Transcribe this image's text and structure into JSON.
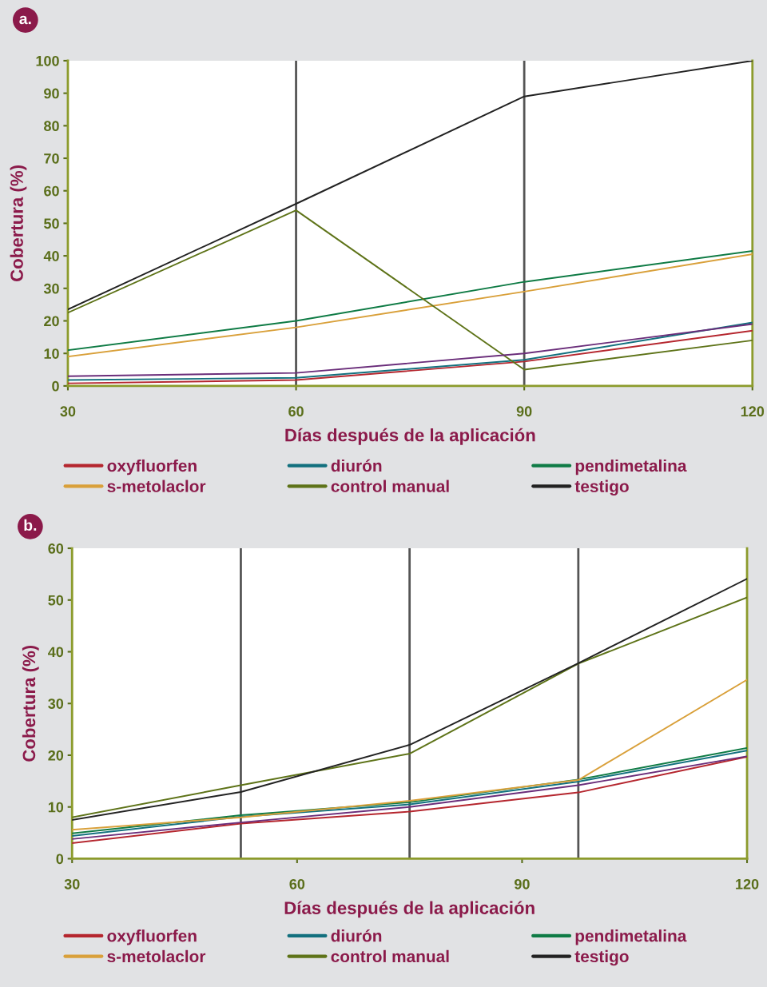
{
  "chart_data": [
    {
      "type": "line",
      "annotations": [
        "a."
      ],
      "xlabel": "Días después de la aplicación",
      "ylabel": "Cobertura (%)",
      "x": [
        30,
        60,
        90,
        120
      ],
      "xlim": [
        30,
        120
      ],
      "xticks": [
        30,
        60,
        90,
        120
      ],
      "ylim": [
        0,
        100
      ],
      "yticks": [
        0,
        10,
        20,
        30,
        40,
        50,
        60,
        70,
        80,
        90,
        100
      ],
      "grid": false,
      "legend": "bottom",
      "marker": "none",
      "line_style": "solid",
      "ref_lines": [
        {
          "axis": "x",
          "value": 60,
          "color": "#555555"
        },
        {
          "axis": "x",
          "value": 90,
          "color": "#555555"
        }
      ],
      "series": [
        {
          "name": "oxyfluorfen",
          "color": "#b5262e",
          "values": [
            0.8,
            1.8,
            7.5,
            17
          ]
        },
        {
          "name": "diurón",
          "color": "#12707e",
          "values": [
            1.8,
            2.5,
            8,
            19.5
          ]
        },
        {
          "name": "pendimetalina",
          "color": "#0f7b45",
          "values": [
            11,
            20,
            32,
            41.5
          ]
        },
        {
          "name": "s-metolaclor",
          "color": "#d9a03a",
          "values": [
            9,
            18,
            29,
            40.5
          ]
        },
        {
          "name": "control manual",
          "color": "#5e7318",
          "values": [
            22.5,
            54,
            5,
            14
          ]
        },
        {
          "name": "testigo",
          "color": "#222222",
          "values": [
            23.5,
            56,
            89,
            100
          ]
        },
        {
          "color": "#6a2d7a",
          "values": [
            3,
            4,
            10,
            19
          ]
        }
      ]
    },
    {
      "type": "line",
      "annotations": [
        "b."
      ],
      "xlabel": "Días después de la aplicación",
      "ylabel": "Cobertura (%)",
      "x": [
        30,
        52.5,
        75,
        97.5,
        120
      ],
      "xlim": [
        30,
        120
      ],
      "xticks": [
        30,
        60,
        90,
        120
      ],
      "ylim": [
        0,
        60
      ],
      "yticks": [
        0,
        10,
        20,
        30,
        40,
        50,
        60
      ],
      "grid": false,
      "legend": "bottom",
      "marker": "none",
      "line_style": "solid",
      "ref_lines": [
        {
          "axis": "x",
          "value": 52.5,
          "color": "#555555"
        },
        {
          "axis": "x",
          "value": 75,
          "color": "#555555"
        },
        {
          "axis": "x",
          "value": 97.5,
          "color": "#555555"
        }
      ],
      "series": [
        {
          "name": "oxyfluorfen",
          "color": "#b5262e",
          "values": [
            3,
            6.8,
            9.1,
            12.8,
            19.7
          ]
        },
        {
          "name": "diurón",
          "color": "#12707e",
          "values": [
            4.4,
            8.1,
            10.5,
            14.9,
            20.9
          ]
        },
        {
          "name": "pendimetalina",
          "color": "#0f7b45",
          "values": [
            4.9,
            8.4,
            10.9,
            15.3,
            21.4
          ]
        },
        {
          "name": "s-metolaclor",
          "color": "#d9a03a",
          "values": [
            5.6,
            8,
            11.2,
            15.2,
            34.6
          ]
        },
        {
          "name": "control manual",
          "color": "#5e7318",
          "values": [
            8,
            14.2,
            20.3,
            37.7,
            50.5
          ]
        },
        {
          "name": "testigo",
          "color": "#222222",
          "values": [
            7.5,
            12.9,
            22,
            37.8,
            54.1
          ]
        },
        {
          "color": "#6a2d7a",
          "values": [
            3.8,
            7,
            10,
            14.2,
            19.8
          ]
        }
      ]
    }
  ]
}
